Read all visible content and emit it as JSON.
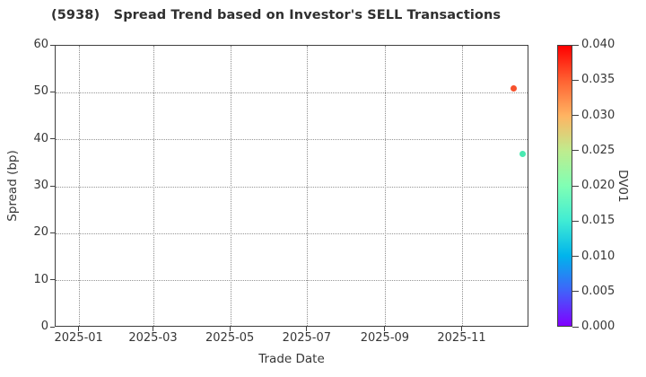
{
  "window": {
    "title": "(5938)   Spread Trend based on Investor's SELL Transactions"
  },
  "chart_data": {
    "type": "scatter",
    "title": "(5938)   Spread Trend based on Investor's SELL Transactions",
    "xlabel": "Trade Date",
    "ylabel": "Spread (bp)",
    "ylim": [
      0,
      60
    ],
    "yticks": [
      0,
      10,
      20,
      30,
      40,
      50,
      60
    ],
    "grid": true,
    "grid_style": "dotted",
    "x_axis_days_range": [
      -19,
      357
    ],
    "x_axis_day_zero": "2025-01-01",
    "xticks": [
      {
        "label": "2025-01",
        "day": 0
      },
      {
        "label": "2025-03",
        "day": 59
      },
      {
        "label": "2025-05",
        "day": 120
      },
      {
        "label": "2025-07",
        "day": 181
      },
      {
        "label": "2025-09",
        "day": 243
      },
      {
        "label": "2025-11",
        "day": 304
      }
    ],
    "points": [
      {
        "date": "2025-12-11",
        "day": 344.5,
        "spread": 51.0,
        "dv01": 0.035,
        "color": "#f7512c"
      },
      {
        "date": "2025-12-19",
        "day": 352.0,
        "spread": 36.9,
        "dv01": 0.019,
        "color": "#49e9b1"
      }
    ],
    "colorbar": {
      "label": "DV01",
      "min": 0.0,
      "max": 0.04,
      "colormap": "rainbow",
      "tick_labels": [
        "0.000",
        "0.005",
        "0.010",
        "0.015",
        "0.020",
        "0.025",
        "0.030",
        "0.035",
        "0.040"
      ],
      "gradient_stops": [
        {
          "pos": 0.0,
          "color": "#8000ff"
        },
        {
          "pos": 0.125,
          "color": "#4062fa"
        },
        {
          "pos": 0.25,
          "color": "#00b4ec"
        },
        {
          "pos": 0.375,
          "color": "#40ecd4"
        },
        {
          "pos": 0.5,
          "color": "#80ffb4"
        },
        {
          "pos": 0.625,
          "color": "#bfec8e"
        },
        {
          "pos": 0.75,
          "color": "#ffb462"
        },
        {
          "pos": 0.875,
          "color": "#ff6232"
        },
        {
          "pos": 1.0,
          "color": "#ff0000"
        }
      ]
    },
    "colors": {
      "spine": "#3f3f3f",
      "grid": "#969696",
      "text": "#363636",
      "background": "#ffffff"
    }
  }
}
